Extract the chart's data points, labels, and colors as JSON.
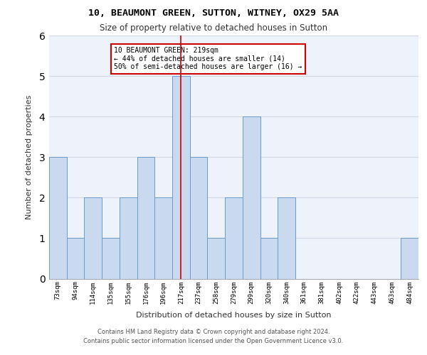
{
  "title1": "10, BEAUMONT GREEN, SUTTON, WITNEY, OX29 5AA",
  "title2": "Size of property relative to detached houses in Sutton",
  "xlabel": "Distribution of detached houses by size in Sutton",
  "ylabel": "Number of detached properties",
  "categories": [
    "73sqm",
    "94sqm",
    "114sqm",
    "135sqm",
    "155sqm",
    "176sqm",
    "196sqm",
    "217sqm",
    "237sqm",
    "258sqm",
    "279sqm",
    "299sqm",
    "320sqm",
    "340sqm",
    "361sqm",
    "381sqm",
    "402sqm",
    "422sqm",
    "443sqm",
    "463sqm",
    "484sqm"
  ],
  "values": [
    3,
    1,
    2,
    1,
    2,
    3,
    2,
    5,
    3,
    1,
    2,
    4,
    1,
    2,
    0,
    0,
    0,
    0,
    0,
    0,
    1
  ],
  "bar_color": "#c9d9f0",
  "bar_edge_color": "#6a9bc9",
  "highlight_index": 7,
  "highlight_line_color": "#cc0000",
  "annotation_text": "10 BEAUMONT GREEN: 219sqm\n← 44% of detached houses are smaller (14)\n50% of semi-detached houses are larger (16) →",
  "annotation_box_color": "#ffffff",
  "annotation_box_edge_color": "#cc0000",
  "ylim": [
    0,
    6
  ],
  "yticks": [
    0,
    1,
    2,
    3,
    4,
    5,
    6
  ],
  "grid_color": "#d0d8e8",
  "background_color": "#eef2fa",
  "footer_line1": "Contains HM Land Registry data © Crown copyright and database right 2024.",
  "footer_line2": "Contains public sector information licensed under the Open Government Licence v3.0."
}
